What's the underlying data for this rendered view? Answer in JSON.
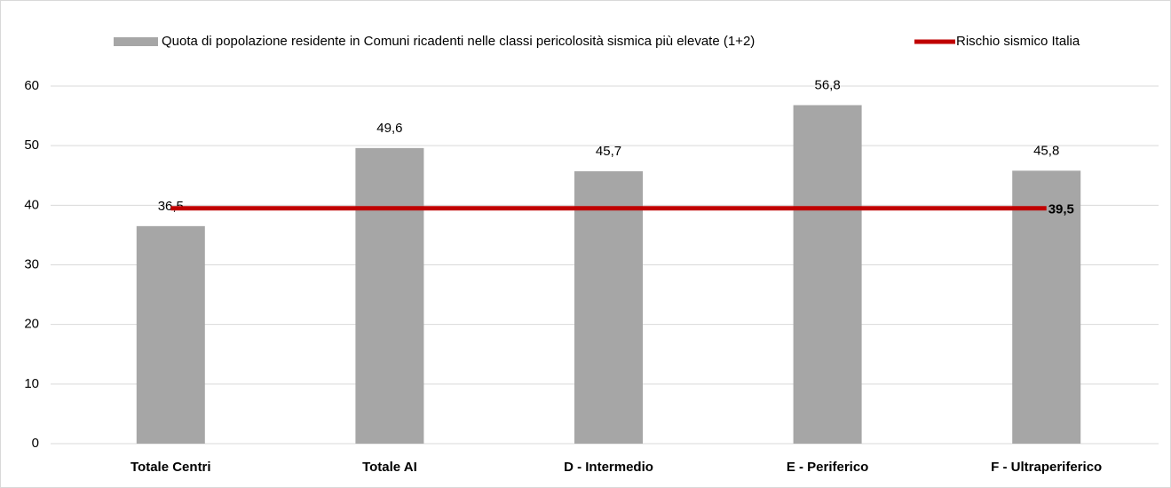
{
  "chart_data": {
    "type": "bar_line",
    "categories": [
      "Totale Centri",
      "Totale AI",
      "D - Intermedio",
      "E - Periferico",
      "F - Ultraperiferico"
    ],
    "series": [
      {
        "name": "Quota di popolazione residente in Comuni ricadenti nelle classi pericolosità sismica più elevate (1+2)",
        "type": "bar",
        "color": "#a6a6a6",
        "values": [
          36.5,
          49.6,
          45.7,
          56.8,
          45.8
        ],
        "value_labels": [
          "36,5",
          "49,6",
          "45,7",
          "56,8",
          "45,8"
        ]
      },
      {
        "name": "Rischio sismico Italia",
        "type": "line",
        "color": "#c00000",
        "values": [
          39.5,
          39.5,
          39.5,
          39.5,
          39.5
        ],
        "value_labels": [
          null,
          null,
          null,
          null,
          "39,5"
        ]
      }
    ],
    "ylim": [
      0,
      60
    ],
    "yticks": [
      0,
      10,
      20,
      30,
      40,
      50,
      60
    ],
    "grid": true,
    "legend": "top"
  }
}
